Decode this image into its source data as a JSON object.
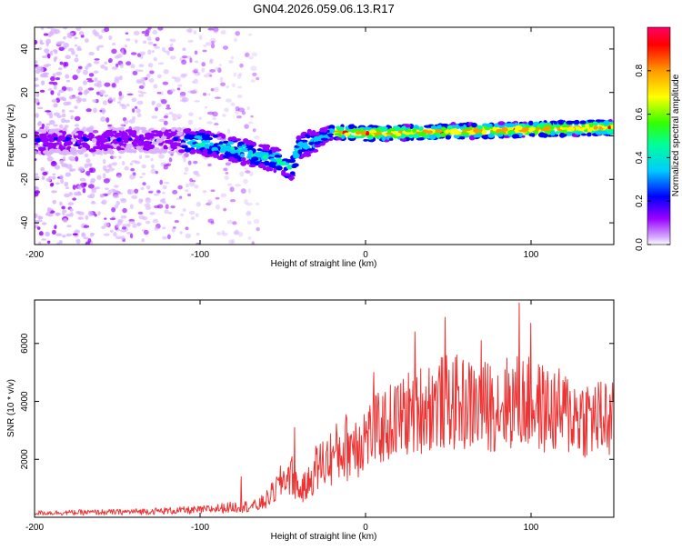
{
  "page": {
    "title": "GN04.2026.059.06.13.R17"
  },
  "colors": {
    "snr_line": "#ee3333",
    "axis": "#000000",
    "colormap": [
      "#ffffff",
      "#9a00ff",
      "#0000ff",
      "#00ffff",
      "#00ff00",
      "#ffff00",
      "#ff8000",
      "#ff0000",
      "#ff0066"
    ]
  },
  "chart_data": [
    {
      "type": "heatmap",
      "name": "spectrogram",
      "title": "GN04.2026.059.06.13.R17",
      "xlabel": "Height of straight line (km)",
      "ylabel": "Frequency (Hz)",
      "xlim": [
        -200,
        150
      ],
      "ylim": [
        -50,
        50
      ],
      "x_ticks": [
        -200,
        -100,
        0,
        100
      ],
      "x_tick_labels": [
        "-200",
        "-100",
        "0",
        "100"
      ],
      "y_ticks": [
        -40,
        -20,
        0,
        20,
        40
      ],
      "y_tick_labels": [
        "-40",
        "-20",
        "0",
        "20",
        "40"
      ],
      "ridge": {
        "x": [
          -200,
          -150,
          -120,
          -100,
          -80,
          -70,
          -60,
          -50,
          -45,
          -40,
          -30,
          -20,
          0,
          50,
          100,
          150
        ],
        "freq": [
          -3,
          -2,
          -2,
          -3,
          -6,
          -8,
          -10,
          -12,
          -16,
          -5,
          -2,
          2,
          1,
          2,
          3,
          4
        ]
      },
      "colorbar": {
        "label": "Normalized spectral amplitude",
        "range": [
          0,
          1
        ],
        "ticks": [
          0.0,
          0.2,
          0.4,
          0.6,
          0.8
        ],
        "tick_labels": [
          "0.0",
          "0.2",
          "0.4",
          "0.6",
          "0.8"
        ]
      }
    },
    {
      "type": "line",
      "name": "snr",
      "xlabel": "Height of straight line (km)",
      "ylabel": "SNR (10 * v/v)",
      "xlim": [
        -200,
        150
      ],
      "ylim": [
        0,
        7500
      ],
      "x_ticks": [
        -200,
        -100,
        0,
        100
      ],
      "x_tick_labels": [
        "-200",
        "-100",
        "0",
        "100"
      ],
      "y_ticks": [
        2000,
        4000,
        6000
      ],
      "y_tick_labels": [
        "2000",
        "4000",
        "6000"
      ],
      "envelope": {
        "x": [
          -200,
          -150,
          -100,
          -80,
          -65,
          -60,
          -55,
          -50,
          -45,
          -40,
          -35,
          -30,
          -20,
          -10,
          0,
          10,
          20,
          30,
          40,
          50,
          60,
          70,
          80,
          90,
          100,
          110,
          120,
          130,
          140,
          150
        ],
        "y": [
          150,
          180,
          250,
          350,
          400,
          600,
          900,
          1300,
          1500,
          900,
          1100,
          1700,
          2100,
          2500,
          2800,
          3100,
          3400,
          3700,
          3900,
          4000,
          3900,
          3800,
          3900,
          4000,
          3900,
          3700,
          3600,
          3500,
          3400,
          3300
        ]
      },
      "peaks": [
        {
          "x": -43,
          "y": 3100
        },
        {
          "x": -75,
          "y": 1400
        },
        {
          "x": 5,
          "y": 5000
        },
        {
          "x": 30,
          "y": 6400
        },
        {
          "x": 48,
          "y": 6900
        },
        {
          "x": 70,
          "y": 6100
        },
        {
          "x": 93,
          "y": 7400
        },
        {
          "x": 100,
          "y": 6700
        },
        {
          "x": 145,
          "y": 4600
        }
      ]
    }
  ]
}
